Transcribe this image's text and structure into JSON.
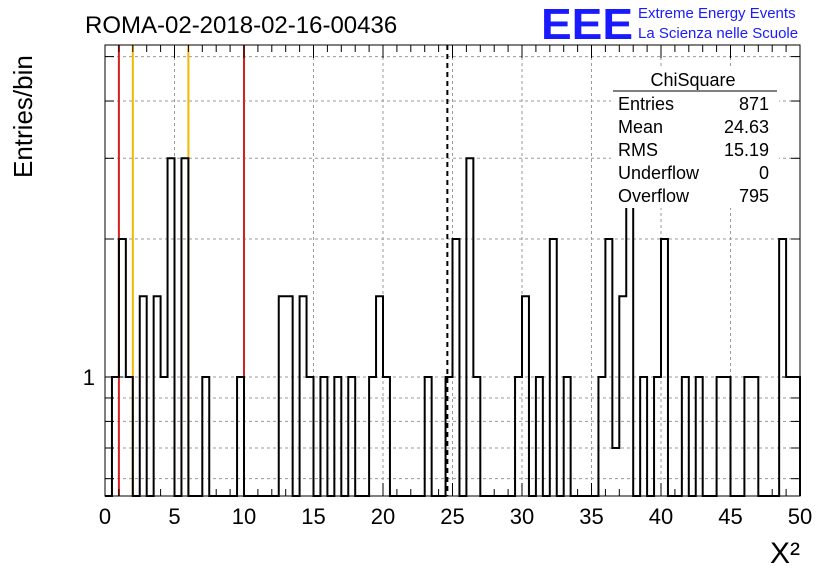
{
  "title": "ROMA-02-2018-02-16-00436",
  "brand": {
    "logo": "EEE",
    "line1": "Extreme Energy Events",
    "line2": "La Scienza nelle Scuole",
    "color": "#1a1aff"
  },
  "stats": {
    "name": "ChiSquare",
    "rows": [
      {
        "label": "Entries",
        "value": "871"
      },
      {
        "label": "Mean",
        "value": "24.63"
      },
      {
        "label": "RMS",
        "value": "15.19"
      },
      {
        "label": "Underflow",
        "value": "0"
      },
      {
        "label": "Overflow",
        "value": "795"
      }
    ]
  },
  "chart_data": {
    "type": "bar",
    "histogram": "step",
    "xlabel": "X²",
    "ylabel": "Entries/bin",
    "xlim": [
      0,
      50
    ],
    "ylim": [
      0.55,
      5.3
    ],
    "log_y": true,
    "grid": true,
    "bin_width": 0.5,
    "x_ticks": [
      "0",
      "5",
      "10",
      "15",
      "20",
      "25",
      "30",
      "35",
      "40",
      "45",
      "50"
    ],
    "y_ticks": [
      "1"
    ],
    "bins": [
      [
        0.5,
        1
      ],
      [
        1.0,
        2
      ],
      [
        1.5,
        1
      ],
      [
        2.5,
        1.5
      ],
      [
        3.5,
        1.5
      ],
      [
        4.0,
        1
      ],
      [
        4.5,
        3
      ],
      [
        5.5,
        3
      ],
      [
        7.0,
        1
      ],
      [
        9.5,
        1
      ],
      [
        12.5,
        1.5
      ],
      [
        13.0,
        1.5
      ],
      [
        14.0,
        1.5
      ],
      [
        14.5,
        1
      ],
      [
        15.5,
        1
      ],
      [
        16.5,
        1
      ],
      [
        17.5,
        1
      ],
      [
        19.0,
        1
      ],
      [
        19.5,
        1.5
      ],
      [
        20.0,
        1
      ],
      [
        23.0,
        1
      ],
      [
        24.5,
        1
      ],
      [
        25.0,
        2
      ],
      [
        26.0,
        3
      ],
      [
        26.5,
        1
      ],
      [
        29.5,
        1
      ],
      [
        30.0,
        1.5
      ],
      [
        31.0,
        1
      ],
      [
        32.0,
        2
      ],
      [
        33.0,
        1
      ],
      [
        35.5,
        1
      ],
      [
        36.0,
        2
      ],
      [
        36.5,
        0.7
      ],
      [
        37.0,
        1.5
      ],
      [
        37.5,
        3
      ],
      [
        38.5,
        1
      ],
      [
        39.5,
        1
      ],
      [
        40.0,
        2
      ],
      [
        41.5,
        1
      ],
      [
        42.5,
        1
      ],
      [
        44.0,
        1
      ],
      [
        44.5,
        1
      ],
      [
        46.0,
        1
      ],
      [
        46.5,
        1
      ],
      [
        48.5,
        2
      ],
      [
        49.0,
        1
      ],
      [
        49.5,
        1
      ]
    ],
    "reference_lines": [
      {
        "x": 1,
        "color": "#d62020"
      },
      {
        "x": 2,
        "color": "#f2b800"
      },
      {
        "x": 6,
        "color": "#f2b800"
      },
      {
        "x": 10,
        "color": "#d62020"
      }
    ],
    "mean_line": {
      "x": 24.63,
      "color": "#000000"
    }
  }
}
